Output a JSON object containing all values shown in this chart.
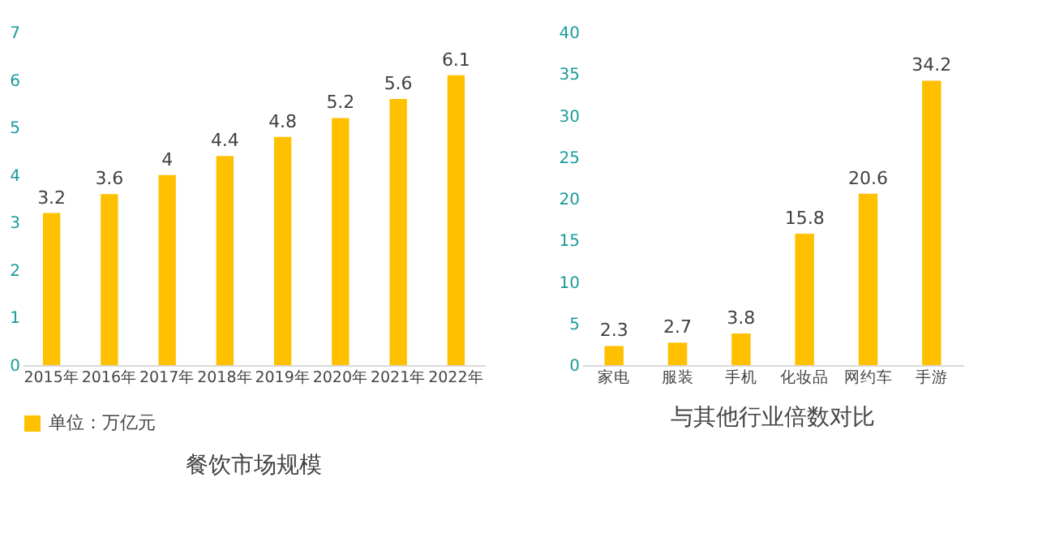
{
  "chart_data": [
    {
      "type": "bar",
      "title": "餐饮市场规模",
      "categories": [
        "2015年",
        "2016年",
        "2017年",
        "2018年",
        "2019年",
        "2020年",
        "2021年",
        "2022年"
      ],
      "series": [
        {
          "name": "单位：万亿元",
          "color": "#ffc000",
          "values": [
            3.2,
            3.6,
            4,
            4.4,
            4.8,
            5.2,
            5.6,
            6.1
          ]
        }
      ],
      "ylim": [
        0,
        7
      ],
      "yticks": [
        0,
        1,
        2,
        3,
        4,
        5,
        6,
        7
      ],
      "data_labels": true,
      "legend": "bottom",
      "grid": false
    },
    {
      "type": "bar",
      "title": "与其他行业倍数对比",
      "categories": [
        "家电",
        "服装",
        "手机",
        "化妆品",
        "网约车",
        "手游"
      ],
      "series": [
        {
          "color": "#ffc000",
          "values": [
            2.3,
            2.7,
            3.8,
            15.8,
            20.6,
            34.2
          ]
        }
      ],
      "ylim": [
        0,
        40
      ],
      "yticks": [
        0,
        5,
        10,
        15,
        20,
        25,
        30,
        35,
        40
      ],
      "data_labels": true,
      "legend": false,
      "grid": false
    }
  ]
}
